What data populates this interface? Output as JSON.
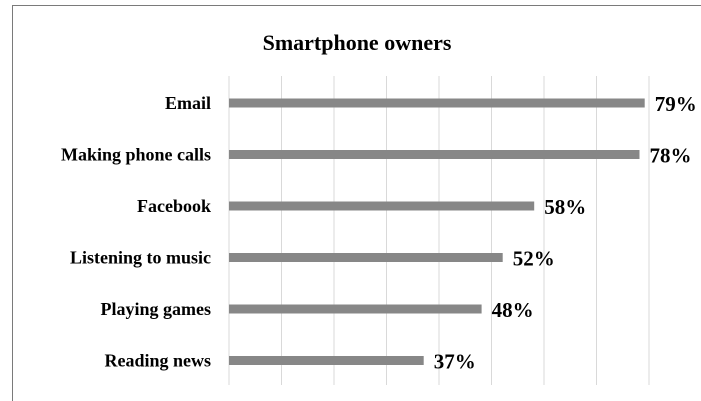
{
  "chart_data": {
    "type": "bar",
    "orientation": "horizontal",
    "title": "Smartphone owners",
    "categories": [
      "Email",
      "Making phone calls",
      "Facebook",
      "Listening to music",
      "Playing games",
      "Reading news"
    ],
    "values": [
      79,
      78,
      58,
      52,
      48,
      37
    ],
    "data_labels": [
      "79%",
      "78%",
      "58%",
      "52%",
      "48%",
      "37%"
    ],
    "xlim": [
      0,
      80
    ],
    "grid": true,
    "legend": "none",
    "colors": {
      "bar": "#878787",
      "grid": "#d9d9d9",
      "frame": "#7a7a7a"
    }
  }
}
